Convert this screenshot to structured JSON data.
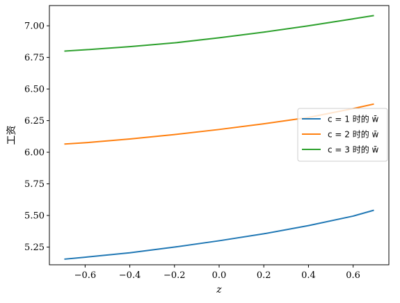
{
  "chart_data": {
    "type": "line",
    "xlabel": "z",
    "ylabel": "工资",
    "xlim": [
      -0.76,
      0.76
    ],
    "ylim": [
      5.11,
      7.16
    ],
    "xticks": [
      -0.6,
      -0.4,
      -0.2,
      0.0,
      0.2,
      0.4,
      0.6
    ],
    "xtick_labels": [
      "−0.6",
      "−0.4",
      "−0.2",
      "0.0",
      "0.2",
      "0.4",
      "0.6"
    ],
    "yticks": [
      5.25,
      5.5,
      5.75,
      6.0,
      6.25,
      6.5,
      6.75,
      7.0
    ],
    "ytick_labels": [
      "5.25",
      "5.50",
      "5.75",
      "6.00",
      "6.25",
      "6.50",
      "6.75",
      "7.00"
    ],
    "grid": false,
    "legend_position": "center-right",
    "series": [
      {
        "name": "c = 1 时的 w̄",
        "color": "#1f77b4",
        "x": [
          -0.69,
          -0.6,
          -0.4,
          -0.2,
          0.0,
          0.2,
          0.4,
          0.6,
          0.69
        ],
        "y": [
          5.155,
          5.17,
          5.205,
          5.25,
          5.3,
          5.355,
          5.42,
          5.495,
          5.54
        ]
      },
      {
        "name": "c = 2 时的 w̄",
        "color": "#ff7f0e",
        "x": [
          -0.69,
          -0.6,
          -0.4,
          -0.2,
          0.0,
          0.2,
          0.4,
          0.6,
          0.69
        ],
        "y": [
          6.065,
          6.075,
          6.105,
          6.14,
          6.18,
          6.225,
          6.275,
          6.345,
          6.38
        ]
      },
      {
        "name": "c = 3 时的 w̄",
        "color": "#2ca02c",
        "x": [
          -0.69,
          -0.6,
          -0.4,
          -0.2,
          0.0,
          0.2,
          0.4,
          0.6,
          0.69
        ],
        "y": [
          6.8,
          6.81,
          6.835,
          6.865,
          6.905,
          6.95,
          7.0,
          7.055,
          7.08
        ]
      }
    ]
  }
}
